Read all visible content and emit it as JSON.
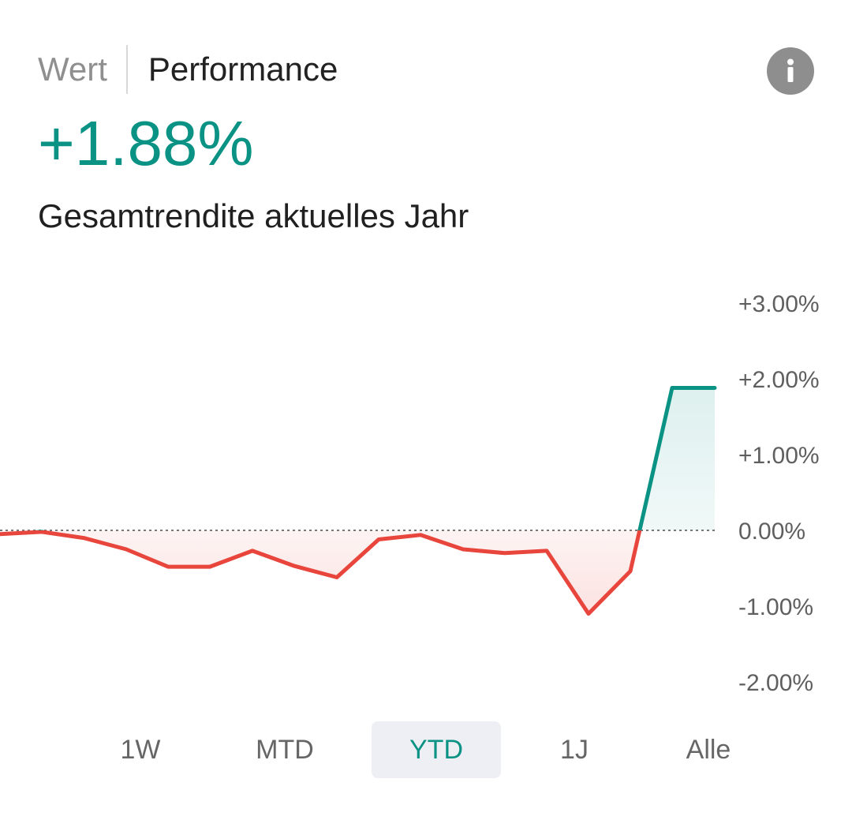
{
  "tabs": {
    "value_label": "Wert",
    "performance_label": "Performance",
    "active": "performance"
  },
  "info_icon": "info-icon",
  "summary": {
    "value": "+1.88%",
    "caption": "Gesamtrendite aktuelles Jahr"
  },
  "colors": {
    "positive": "#0a9384",
    "negative": "#e8453c",
    "active_range_text": "#0a9384",
    "inactive_range_text": "#666666",
    "active_range_bg": "#eeeff4"
  },
  "chart_data": {
    "type": "area",
    "title": "",
    "xlabel": "",
    "ylabel": "",
    "y_axis_position": "right",
    "ylim": [
      -2,
      3
    ],
    "y_ticks": [
      3,
      2,
      1,
      0,
      -1,
      -2
    ],
    "y_tick_labels": [
      "+3.00%",
      "+2.00%",
      "+1.00%",
      "0.00%",
      "-1.00%",
      "-2.00%"
    ],
    "zero_line": "dotted",
    "grid": false,
    "series": [
      {
        "values": [
          -0.05,
          -0.02,
          -0.1,
          -0.25,
          -0.48,
          -0.48,
          -0.27,
          -0.47,
          -0.62,
          -0.12,
          -0.06,
          -0.25,
          -0.3,
          -0.27,
          -1.1,
          -0.54,
          1.88,
          1.88
        ],
        "positive_color": "#0a9384",
        "negative_color": "#e8453c"
      }
    ]
  },
  "ranges": {
    "options": [
      {
        "id": "1w",
        "label": "1W"
      },
      {
        "id": "mtd",
        "label": "MTD"
      },
      {
        "id": "ytd",
        "label": "YTD"
      },
      {
        "id": "1j",
        "label": "1J"
      },
      {
        "id": "alle",
        "label": "Alle"
      }
    ],
    "selected": "ytd"
  }
}
